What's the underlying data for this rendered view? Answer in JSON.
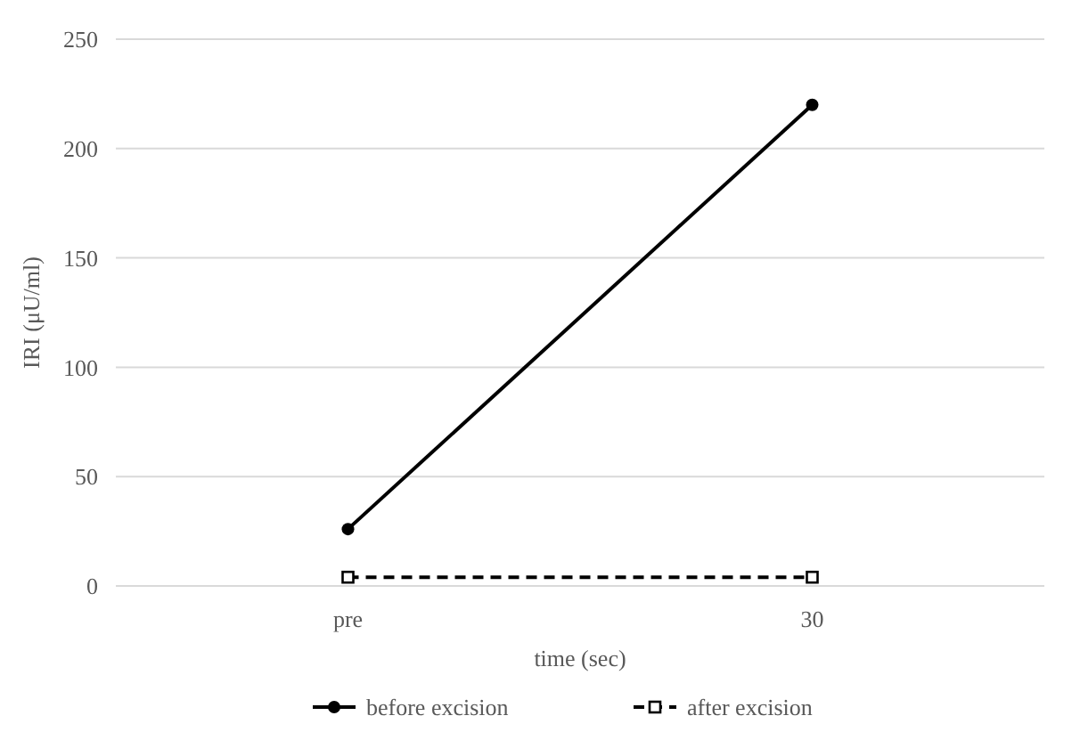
{
  "chart_data": {
    "type": "line",
    "xlabel": "time (sec)",
    "ylabel": "IRI (μU/ml)",
    "categories": [
      "pre",
      "30"
    ],
    "series": [
      {
        "name": "before excision",
        "color": "#000000",
        "values": [
          26,
          220
        ],
        "marker": "circle",
        "line_style": "solid"
      },
      {
        "name": "after excision",
        "color": "#000000",
        "values": [
          4,
          4
        ],
        "marker": "square",
        "line_style": "dashed"
      }
    ],
    "ylim": [
      0,
      250
    ],
    "yticks": [
      0,
      50,
      100,
      150,
      200,
      250
    ],
    "grid": "y",
    "legend": "bottom"
  }
}
